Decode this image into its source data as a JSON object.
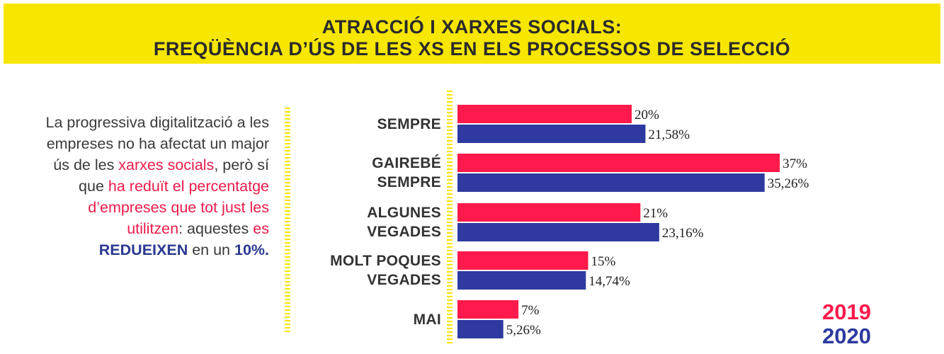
{
  "header": {
    "title_line1": "ATRACCIÓ I XARXES SOCIALS:",
    "title_line2": "FREQÜÈNCIA D’ÚS DE LES XS EN ELS PROCESSOS DE SELECCIÓ"
  },
  "intro": {
    "seg1": "La progressiva digitalització a les empreses no ha afectat un major ús de les ",
    "seg2": "xarxes socials",
    "seg3": ", però sí que ",
    "seg4": "ha reduït el percentatge d’empreses que tot just les utilitzen",
    "seg5": ": aquestes ",
    "seg6": "es ",
    "seg7": "REDUEIXEN",
    "seg8": " en un ",
    "seg9": "10%."
  },
  "colors": {
    "series_2019": "#ff1a4b",
    "series_2020": "#2e3a9f",
    "banner": "#f7e600"
  },
  "chart_data": {
    "type": "bar",
    "orientation": "horizontal",
    "categories": [
      "SEMPRE",
      "GAIREBÉ SEMPRE",
      "ALGUNES VEGADES",
      "MOLT POQUES VEGADES",
      "MAI"
    ],
    "category_lines": [
      [
        "SEMPRE"
      ],
      [
        "GAIREBÉ",
        "SEMPRE"
      ],
      [
        "ALGUNES",
        "VEGADES"
      ],
      [
        "MOLT POQUES",
        "VEGADES"
      ],
      [
        "MAI"
      ]
    ],
    "series": [
      {
        "name": "2019",
        "values": [
          20,
          37,
          21,
          15,
          7
        ],
        "labels": [
          "20%",
          "37%",
          "21%",
          "15%",
          "7%"
        ]
      },
      {
        "name": "2020",
        "values": [
          21.58,
          35.26,
          23.16,
          14.74,
          5.26
        ],
        "labels": [
          "21,58%",
          "35,26%",
          "23,16%",
          "14,74%",
          "5,26%"
        ]
      }
    ],
    "legend": [
      "2019",
      "2020"
    ],
    "legend_position": "bottom-right",
    "xlim": [
      0,
      40
    ],
    "grid": false
  }
}
